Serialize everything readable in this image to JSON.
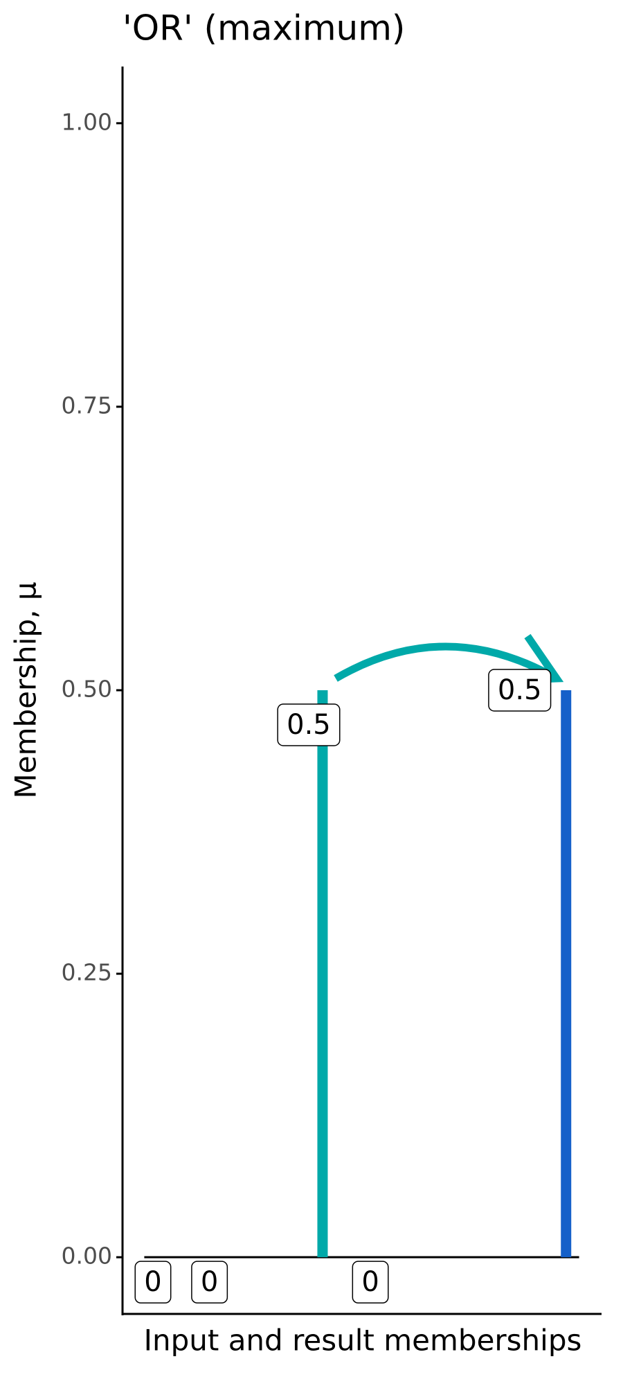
{
  "chart_data": {
    "type": "membership",
    "title": "'OR' (maximum)",
    "xlabel": "Input and result memberships",
    "ylabel": "Membership, μ",
    "xlim": [
      -5,
      105
    ],
    "ylim": [
      -0.05,
      1.05
    ],
    "yticks": [
      {
        "value": 0,
        "label": "0.00"
      },
      {
        "value": 0.25,
        "label": "0.25"
      },
      {
        "value": 0.5,
        "label": "0.50"
      },
      {
        "value": 0.75,
        "label": "0.75"
      },
      {
        "value": 1,
        "label": "1.00"
      }
    ],
    "baseline": {
      "x": [
        0,
        100
      ],
      "values": [
        0,
        0
      ]
    },
    "series": [
      {
        "color": "#00a9a9",
        "x": [
          2,
          15,
          41,
          52
        ],
        "values": [
          0,
          0,
          0.5,
          0
        ]
      },
      {
        "color": "#1560c9",
        "x": [
          97
        ],
        "values": [
          0.5
        ]
      }
    ]
  }
}
